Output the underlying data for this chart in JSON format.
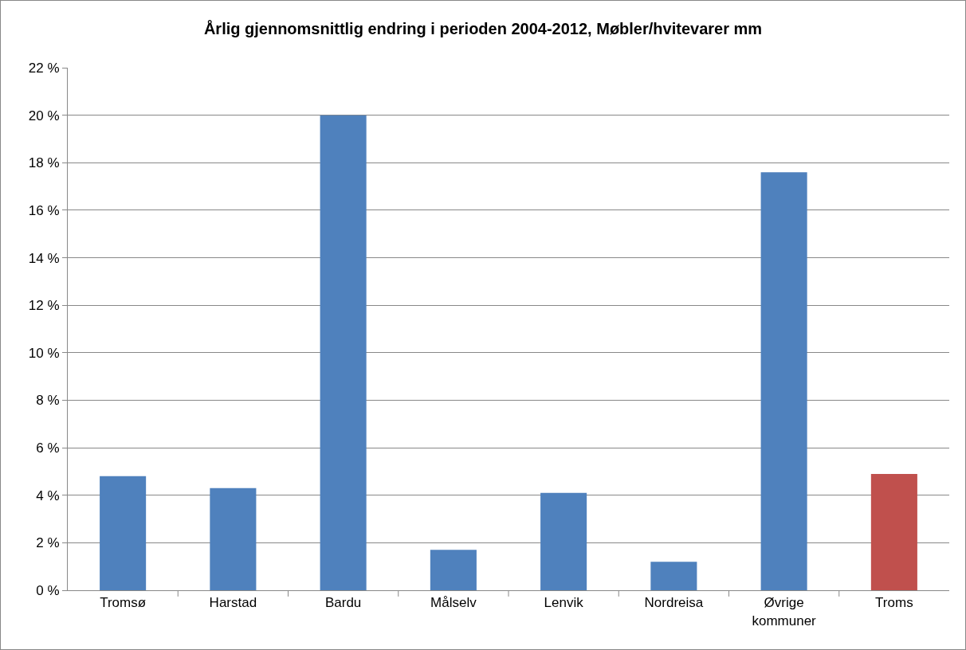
{
  "chart_data": {
    "type": "bar",
    "title": "Årlig gjennomsnittlig endring i perioden 2004-2012, Møbler/hvitevarer mm",
    "categories": [
      "Tromsø",
      "Harstad",
      "Bardu",
      "Målselv",
      "Lenvik",
      "Nordreisa",
      "Øvrige kommuner",
      "Troms"
    ],
    "values": [
      4.8,
      4.3,
      20.0,
      1.7,
      4.1,
      1.2,
      17.6,
      4.9
    ],
    "colors": [
      "#4f81bd",
      "#4f81bd",
      "#4f81bd",
      "#4f81bd",
      "#4f81bd",
      "#4f81bd",
      "#4f81bd",
      "#c0504d"
    ],
    "ylim": [
      0,
      22
    ],
    "yticks": [
      {
        "value": 0,
        "label": "0 %"
      },
      {
        "value": 2,
        "label": "2 %"
      },
      {
        "value": 4,
        "label": "4 %"
      },
      {
        "value": 6,
        "label": "6 %"
      },
      {
        "value": 8,
        "label": "8 %"
      },
      {
        "value": 10,
        "label": "10 %"
      },
      {
        "value": 12,
        "label": "12 %"
      },
      {
        "value": 14,
        "label": "14 %"
      },
      {
        "value": 16,
        "label": "16 %"
      },
      {
        "value": 18,
        "label": "18 %"
      },
      {
        "value": 20,
        "label": "20 %"
      },
      {
        "value": 22,
        "label": "22 %"
      }
    ],
    "grid": "y"
  }
}
